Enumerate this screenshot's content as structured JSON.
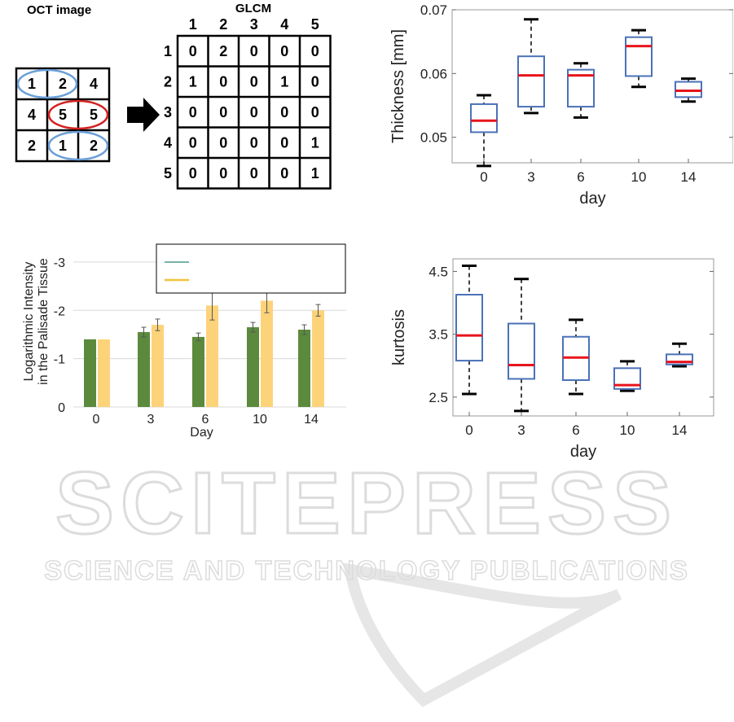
{
  "oct_panel": {
    "title": "OCT image",
    "grid": [
      [
        "1",
        "2",
        "4"
      ],
      [
        "4",
        "5",
        "5"
      ],
      [
        "2",
        "1",
        "2"
      ]
    ]
  },
  "glcm_panel": {
    "title": "GLCM",
    "col_headers": [
      "1",
      "2",
      "3",
      "4",
      "5"
    ],
    "row_headers": [
      "1",
      "2",
      "3",
      "4",
      "5"
    ],
    "matrix": [
      [
        "0",
        "2",
        "0",
        "0",
        "0"
      ],
      [
        "1",
        "0",
        "0",
        "1",
        "0"
      ],
      [
        "0",
        "0",
        "0",
        "0",
        "0"
      ],
      [
        "0",
        "0",
        "0",
        "0",
        "1"
      ],
      [
        "0",
        "0",
        "0",
        "0",
        "1"
      ]
    ],
    "highlight_blue_cell": "2",
    "highlight_red_cell": "1"
  },
  "colors": {
    "ellipse_blue": "#6a9fd8",
    "ellipse_red": "#d42020",
    "glcm_blue": "#2e75b6",
    "glcm_red": "#e02020",
    "box_blue": "#4a72b8",
    "median_red": "#e8141b",
    "bar_green": "#5b8a3c",
    "bar_yellow": "#fdd37a",
    "watermark": "#e2e2e2"
  },
  "watermark": {
    "line1": "SCITEPRESS",
    "line2": "SCIENCE AND TECHNOLOGY PUBLICATIONS"
  },
  "chart_data": [
    {
      "type": "box",
      "id": "thickness",
      "xlabel": "day",
      "ylabel": "Thickness [mm]",
      "ylim": [
        0.046,
        0.07
      ],
      "yticks": [
        "0.05",
        "0.06",
        "0.07"
      ],
      "categories": [
        "0",
        "3",
        "6",
        "10",
        "14"
      ],
      "boxes": [
        {
          "min": 0.0455,
          "q1": 0.0508,
          "median": 0.0526,
          "q3": 0.0552,
          "max": 0.0566
        },
        {
          "min": 0.0538,
          "q1": 0.0548,
          "median": 0.0597,
          "q3": 0.0627,
          "max": 0.0685
        },
        {
          "min": 0.0531,
          "q1": 0.0548,
          "median": 0.0597,
          "q3": 0.0606,
          "max": 0.0616
        },
        {
          "min": 0.0579,
          "q1": 0.0596,
          "median": 0.0643,
          "q3": 0.0657,
          "max": 0.0668
        },
        {
          "min": 0.0556,
          "q1": 0.0563,
          "median": 0.0573,
          "q3": 0.0587,
          "max": 0.0592
        }
      ],
      "grid": false
    },
    {
      "type": "bar",
      "id": "intensity",
      "xlabel": "Day",
      "ylabel_lines": [
        "Logarithmic Intensity",
        "in the Palisade Tissue"
      ],
      "ylim": [
        0,
        -3.2
      ],
      "yticks": [
        "0",
        "-1",
        "-2",
        "-3"
      ],
      "categories": [
        "0",
        "3",
        "6",
        "10",
        "14"
      ],
      "series": [
        {
          "values": [
            -1.4,
            -1.55,
            -1.45,
            -1.65,
            -1.6
          ],
          "errors": [
            0.0,
            0.1,
            0.08,
            0.1,
            0.1
          ]
        },
        {
          "values": [
            -1.4,
            -1.7,
            -2.1,
            -2.2,
            -2.0
          ],
          "errors": [
            0.0,
            0.12,
            0.3,
            0.25,
            0.12
          ]
        }
      ],
      "legend": "top",
      "grid": true
    },
    {
      "type": "box",
      "id": "kurtosis",
      "xlabel": "day",
      "ylabel": "kurtosis",
      "ylim": [
        2.2,
        4.7
      ],
      "yticks": [
        "2.5",
        "3.5",
        "4.5"
      ],
      "categories": [
        "0",
        "3",
        "6",
        "10",
        "14"
      ],
      "boxes": [
        {
          "min": 2.55,
          "q1": 3.08,
          "median": 3.48,
          "q3": 4.13,
          "max": 4.59
        },
        {
          "min": 2.28,
          "q1": 2.79,
          "median": 3.01,
          "q3": 3.67,
          "max": 4.38
        },
        {
          "min": 2.55,
          "q1": 2.77,
          "median": 3.13,
          "q3": 3.46,
          "max": 3.73
        },
        {
          "min": 2.6,
          "q1": 2.63,
          "median": 2.69,
          "q3": 2.96,
          "max": 3.07
        },
        {
          "min": 2.99,
          "q1": 3.02,
          "median": 3.06,
          "q3": 3.18,
          "max": 3.35
        }
      ],
      "grid": false
    }
  ]
}
